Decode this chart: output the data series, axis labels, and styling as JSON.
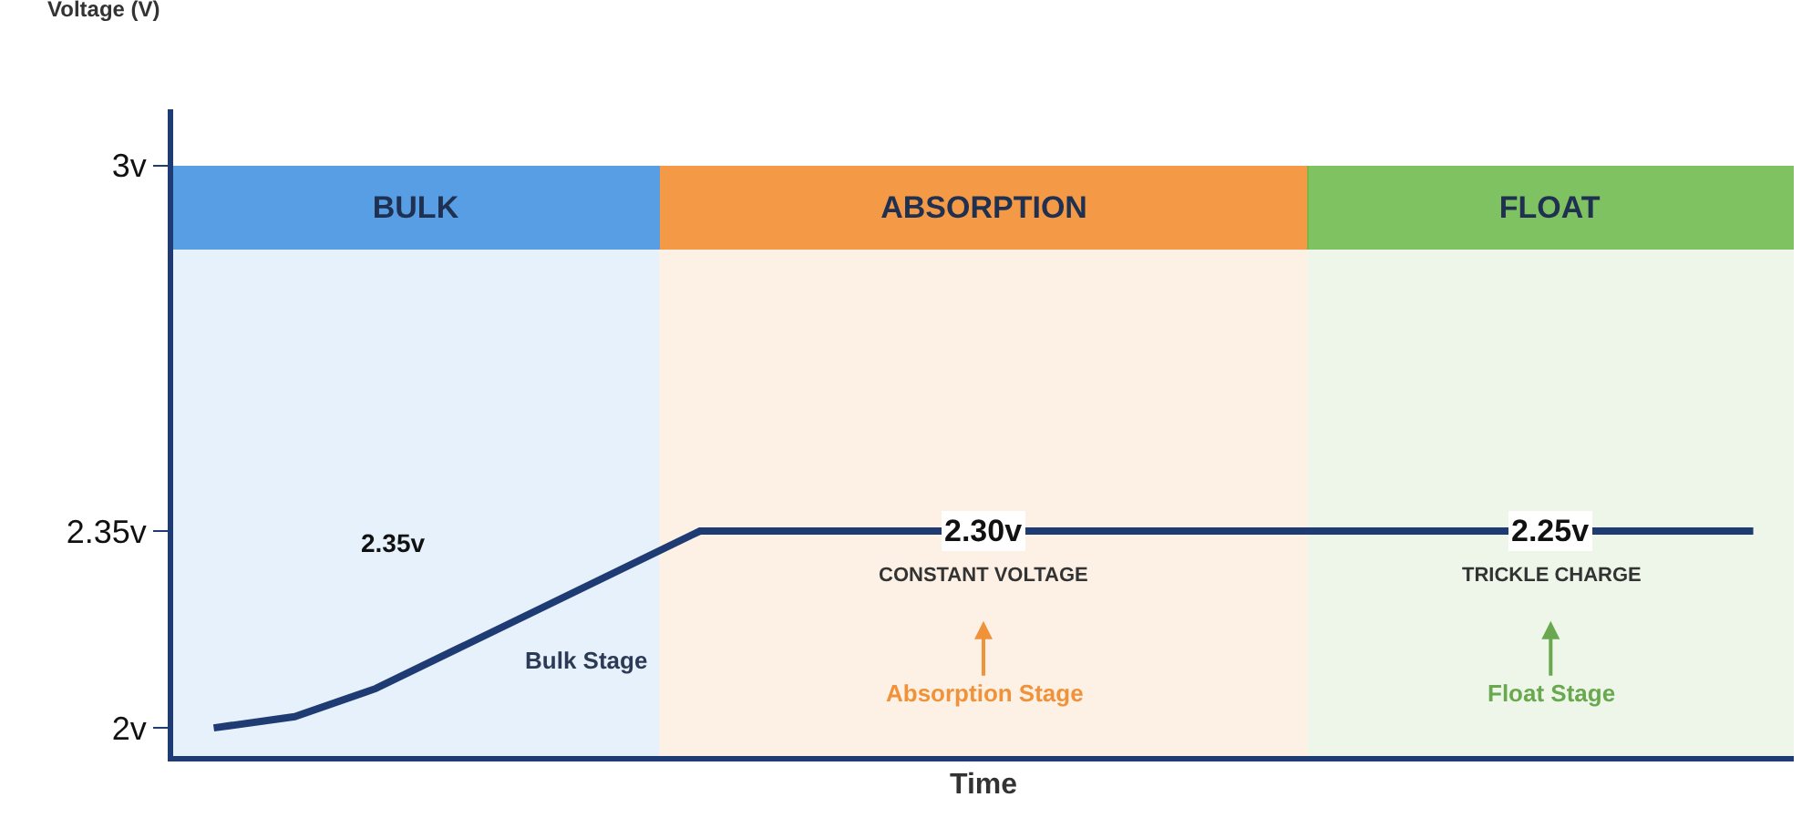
{
  "chart_data": {
    "type": "line",
    "ylabel": "Voltage (V)",
    "xlabel": "Time",
    "categories": [
      null,
      null,
      null,
      null,
      null,
      null,
      null,
      null,
      null,
      null,
      null,
      null,
      null,
      null,
      null,
      null,
      null,
      null,
      null,
      null
    ],
    "series": [
      {
        "color": "#1f3b73",
        "values": [
          2.0,
          2.02,
          2.07,
          2.14,
          2.21,
          2.28,
          2.35,
          2.35,
          2.35,
          2.35,
          2.35,
          2.35,
          2.35,
          2.35,
          2.35,
          2.35,
          2.35,
          2.35,
          2.35,
          2.35
        ]
      }
    ],
    "ylim": [
      1.95,
      3.1
    ],
    "yticks": [
      {
        "value": 2,
        "label": "2v"
      },
      {
        "value": 2.35,
        "label": "2.35v"
      },
      {
        "value": 3,
        "label": "3v"
      }
    ],
    "tick_labels": "y",
    "grid": false,
    "legend": false,
    "marker": "none",
    "line_style": "solid",
    "annotations": [
      "BULK",
      "ABSORPTION",
      "FLOAT",
      "2.35v",
      "2.30v",
      "2.25v",
      "Bulk Stage",
      "CONSTANT VOLTAGE",
      "Absorption Stage",
      "TRICKLE CHARGE",
      "Float Stage"
    ]
  }
}
